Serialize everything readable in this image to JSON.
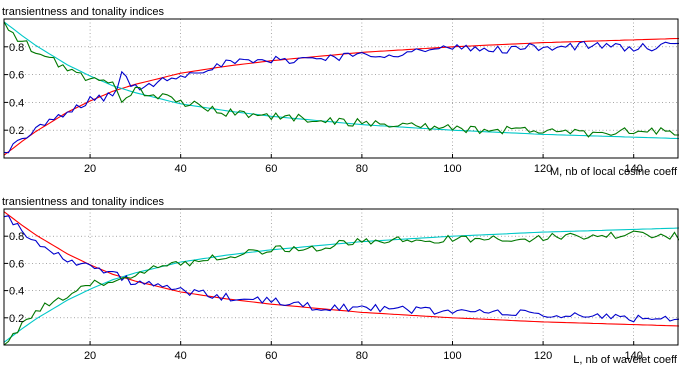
{
  "chart_data": [
    {
      "type": "line",
      "title": "transientness and tonality indices",
      "xlabel": "M, nb of local cosine coeff",
      "ylabel": "",
      "xlim": [
        1,
        150
      ],
      "ylim": [
        0,
        1
      ],
      "xticks": [
        20,
        40,
        60,
        80,
        100,
        120,
        140
      ],
      "yticks": [
        0.2,
        0.4,
        0.6,
        0.8
      ],
      "grid": true,
      "series": [
        {
          "color": "#ff0000",
          "style": "smooth",
          "x": [
            1,
            3,
            5,
            8,
            10,
            15,
            20,
            25,
            30,
            40,
            50,
            60,
            70,
            80,
            90,
            100,
            110,
            120,
            130,
            140,
            150
          ],
          "y": [
            0.02,
            0.07,
            0.12,
            0.19,
            0.23,
            0.33,
            0.41,
            0.48,
            0.53,
            0.61,
            0.66,
            0.7,
            0.73,
            0.76,
            0.78,
            0.8,
            0.815,
            0.83,
            0.84,
            0.85,
            0.86
          ]
        },
        {
          "color": "#00c8c8",
          "style": "smooth",
          "x": [
            1,
            3,
            5,
            8,
            10,
            15,
            20,
            25,
            30,
            40,
            50,
            60,
            70,
            80,
            90,
            100,
            110,
            120,
            130,
            140,
            150
          ],
          "y": [
            0.98,
            0.93,
            0.88,
            0.81,
            0.77,
            0.67,
            0.59,
            0.52,
            0.47,
            0.39,
            0.34,
            0.3,
            0.27,
            0.24,
            0.22,
            0.2,
            0.185,
            0.17,
            0.16,
            0.15,
            0.14
          ]
        },
        {
          "color": "#0000cc",
          "style": "noisy",
          "x": [
            1,
            3,
            5,
            8,
            10,
            15,
            20,
            25,
            27,
            30,
            40,
            50,
            60,
            70,
            80,
            90,
            100,
            110,
            120,
            130,
            140,
            150
          ],
          "y": [
            0.03,
            0.1,
            0.12,
            0.22,
            0.24,
            0.32,
            0.42,
            0.45,
            0.6,
            0.5,
            0.6,
            0.68,
            0.7,
            0.72,
            0.74,
            0.76,
            0.79,
            0.78,
            0.8,
            0.81,
            0.79,
            0.81
          ]
        },
        {
          "color": "#007700",
          "style": "noisy",
          "x": [
            1,
            3,
            5,
            8,
            10,
            15,
            20,
            25,
            27,
            30,
            40,
            50,
            60,
            70,
            80,
            90,
            100,
            110,
            120,
            130,
            140,
            150
          ],
          "y": [
            0.97,
            0.88,
            0.84,
            0.76,
            0.73,
            0.65,
            0.56,
            0.53,
            0.43,
            0.49,
            0.4,
            0.33,
            0.3,
            0.28,
            0.25,
            0.24,
            0.21,
            0.2,
            0.2,
            0.18,
            0.2,
            0.18
          ]
        }
      ]
    },
    {
      "type": "line",
      "title": "transientness and tonality indices",
      "xlabel": "L, nb of wavelet coeff",
      "ylabel": "",
      "xlim": [
        1,
        150
      ],
      "ylim": [
        0,
        1
      ],
      "xticks": [
        20,
        40,
        60,
        80,
        100,
        120,
        140
      ],
      "yticks": [
        0.2,
        0.4,
        0.6,
        0.8
      ],
      "grid": true,
      "series": [
        {
          "color": "#ff0000",
          "style": "smooth",
          "x": [
            1,
            3,
            5,
            8,
            10,
            15,
            20,
            25,
            30,
            40,
            50,
            60,
            70,
            80,
            90,
            100,
            110,
            120,
            130,
            140,
            150
          ],
          "y": [
            0.98,
            0.93,
            0.88,
            0.81,
            0.77,
            0.67,
            0.59,
            0.52,
            0.47,
            0.39,
            0.34,
            0.3,
            0.27,
            0.24,
            0.22,
            0.2,
            0.185,
            0.17,
            0.16,
            0.15,
            0.14
          ]
        },
        {
          "color": "#00c8c8",
          "style": "smooth",
          "x": [
            1,
            3,
            5,
            8,
            10,
            15,
            20,
            25,
            30,
            40,
            50,
            60,
            70,
            80,
            90,
            100,
            110,
            120,
            130,
            140,
            150
          ],
          "y": [
            0.02,
            0.07,
            0.12,
            0.19,
            0.23,
            0.33,
            0.41,
            0.48,
            0.53,
            0.61,
            0.66,
            0.7,
            0.73,
            0.76,
            0.78,
            0.8,
            0.815,
            0.83,
            0.84,
            0.85,
            0.86
          ]
        },
        {
          "color": "#0000cc",
          "style": "noisy",
          "x": [
            1,
            3,
            5,
            8,
            10,
            15,
            20,
            25,
            30,
            40,
            50,
            60,
            70,
            80,
            90,
            100,
            110,
            120,
            130,
            140,
            150
          ],
          "y": [
            0.97,
            0.9,
            0.85,
            0.76,
            0.7,
            0.64,
            0.58,
            0.52,
            0.46,
            0.4,
            0.35,
            0.32,
            0.28,
            0.27,
            0.26,
            0.25,
            0.24,
            0.22,
            0.21,
            0.2,
            0.19
          ]
        },
        {
          "color": "#007700",
          "style": "noisy",
          "x": [
            1,
            3,
            5,
            8,
            10,
            15,
            20,
            25,
            30,
            40,
            50,
            60,
            70,
            80,
            90,
            100,
            110,
            120,
            130,
            140,
            150
          ],
          "y": [
            0.02,
            0.08,
            0.14,
            0.25,
            0.28,
            0.35,
            0.44,
            0.48,
            0.53,
            0.6,
            0.66,
            0.7,
            0.72,
            0.76,
            0.77,
            0.78,
            0.78,
            0.79,
            0.8,
            0.81,
            0.8
          ]
        }
      ]
    }
  ]
}
